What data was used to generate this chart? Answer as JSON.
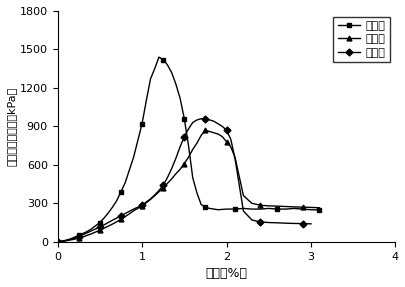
{
  "title": "",
  "xlabel": "应变（%）",
  "ylabel": "无侧限抗压强度（kPa）",
  "xlim": [
    0,
    4
  ],
  "ylim": [
    0,
    1800
  ],
  "xticks": [
    0,
    1,
    2,
    3,
    4
  ],
  "yticks": [
    0,
    300,
    600,
    900,
    1200,
    1500,
    1800
  ],
  "legend_labels": [
    "生蜗壳",
    "扇贝壳",
    "鸡蛋壳"
  ],
  "series1_x": [
    0.0,
    0.05,
    0.1,
    0.15,
    0.2,
    0.25,
    0.3,
    0.35,
    0.4,
    0.45,
    0.5,
    0.55,
    0.6,
    0.65,
    0.7,
    0.75,
    0.8,
    0.85,
    0.9,
    0.95,
    1.0,
    1.05,
    1.1,
    1.15,
    1.2,
    1.25,
    1.3,
    1.35,
    1.4,
    1.45,
    1.5,
    1.55,
    1.6,
    1.65,
    1.7,
    1.75,
    1.8,
    1.85,
    1.9,
    2.0,
    2.1,
    2.2,
    2.3,
    2.4,
    2.5,
    2.6,
    2.7,
    2.8,
    2.9,
    3.0,
    3.1
  ],
  "series1_y": [
    0,
    5,
    12,
    22,
    35,
    50,
    65,
    80,
    100,
    125,
    150,
    185,
    225,
    270,
    320,
    390,
    460,
    560,
    660,
    790,
    920,
    1100,
    1270,
    1350,
    1440,
    1420,
    1380,
    1320,
    1230,
    1120,
    960,
    750,
    500,
    380,
    290,
    270,
    260,
    255,
    250,
    255,
    255,
    260,
    255,
    255,
    260,
    255,
    255,
    260,
    255,
    250,
    248
  ],
  "series2_x": [
    0.0,
    0.05,
    0.1,
    0.15,
    0.2,
    0.25,
    0.3,
    0.35,
    0.4,
    0.45,
    0.5,
    0.55,
    0.6,
    0.65,
    0.7,
    0.75,
    0.8,
    0.85,
    0.9,
    0.95,
    1.0,
    1.05,
    1.1,
    1.15,
    1.2,
    1.25,
    1.3,
    1.35,
    1.4,
    1.45,
    1.5,
    1.55,
    1.6,
    1.65,
    1.7,
    1.75,
    1.8,
    1.85,
    1.9,
    1.95,
    2.0,
    2.05,
    2.1,
    2.2,
    2.3,
    2.4,
    2.5,
    2.6,
    2.7,
    2.8,
    2.9,
    3.0,
    3.1
  ],
  "series2_y": [
    0,
    3,
    8,
    14,
    20,
    28,
    38,
    50,
    62,
    76,
    90,
    106,
    122,
    138,
    156,
    176,
    196,
    218,
    242,
    260,
    280,
    305,
    330,
    360,
    390,
    420,
    455,
    490,
    530,
    565,
    610,
    660,
    720,
    770,
    830,
    870,
    860,
    850,
    840,
    820,
    780,
    740,
    660,
    360,
    300,
    285,
    280,
    278,
    275,
    272,
    270,
    268,
    265
  ],
  "series3_x": [
    0.0,
    0.05,
    0.1,
    0.15,
    0.2,
    0.25,
    0.3,
    0.35,
    0.4,
    0.45,
    0.5,
    0.55,
    0.6,
    0.65,
    0.7,
    0.75,
    0.8,
    0.85,
    0.9,
    0.95,
    1.0,
    1.05,
    1.1,
    1.15,
    1.2,
    1.25,
    1.3,
    1.35,
    1.4,
    1.45,
    1.5,
    1.55,
    1.6,
    1.65,
    1.7,
    1.75,
    1.8,
    1.85,
    1.9,
    1.95,
    2.0,
    2.05,
    2.1,
    2.2,
    2.3,
    2.4,
    2.5,
    2.6,
    2.7,
    2.8,
    2.9,
    3.0
  ],
  "series3_y": [
    0,
    4,
    10,
    18,
    28,
    40,
    55,
    70,
    85,
    100,
    115,
    132,
    150,
    168,
    185,
    202,
    220,
    238,
    255,
    270,
    285,
    310,
    335,
    365,
    400,
    440,
    500,
    570,
    650,
    740,
    820,
    880,
    930,
    950,
    960,
    955,
    950,
    940,
    920,
    900,
    870,
    800,
    650,
    240,
    170,
    155,
    150,
    148,
    145,
    143,
    142,
    140
  ],
  "marker1": "s",
  "marker2": "^",
  "marker3": "D",
  "color": "black",
  "linewidth": 1.0,
  "markersize": 3.5,
  "markevery": 5
}
